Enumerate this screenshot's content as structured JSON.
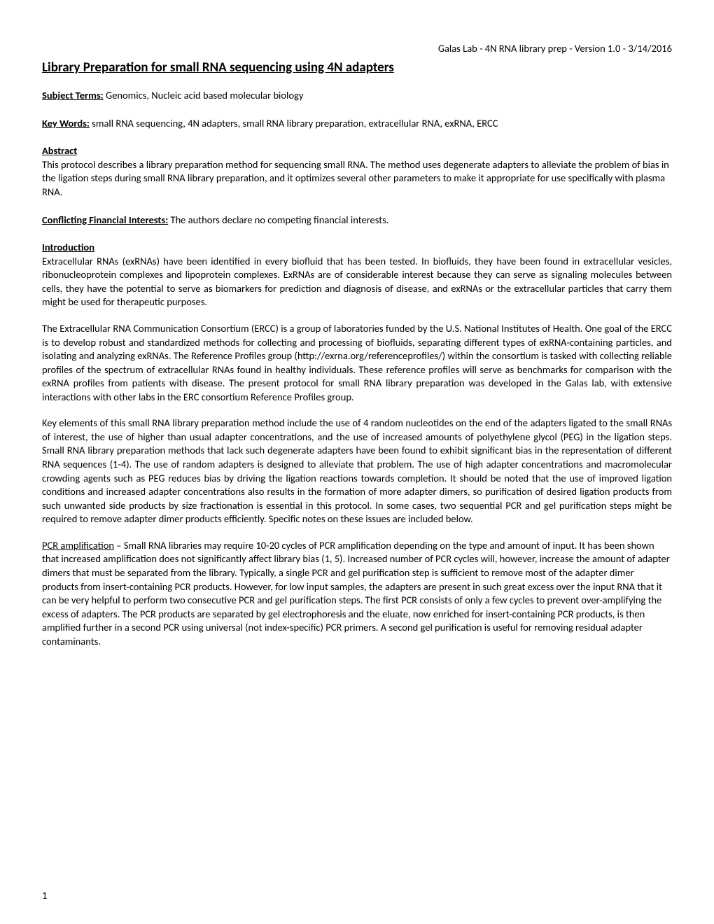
{
  "header": {
    "meta": "Galas Lab - 4N RNA library prep - Version 1.0 - 3/14/2016"
  },
  "title": "Library Preparation for small RNA sequencing using 4N adapters",
  "subject_terms": {
    "label": "Subject Terms:",
    "text": " Genomics, Nucleic acid based molecular biology"
  },
  "key_words": {
    "label": "Key Words:",
    "text": " small RNA sequencing, 4N adapters, small RNA library preparation, extracellular RNA, exRNA, ERCC"
  },
  "abstract": {
    "label": "Abstract",
    "text": "This protocol describes a library preparation method for sequencing small RNA. The method uses degenerate adapters to alleviate the problem of bias in the ligation steps during small RNA library preparation, and it optimizes several other parameters to make it appropriate for use specifically with plasma RNA."
  },
  "conflicting": {
    "label": "Conflicting Financial Interests:",
    "text": " The authors declare no competing financial interests."
  },
  "introduction": {
    "label": "Introduction",
    "p1": "Extracellular RNAs (exRNAs) have been identified in every biofluid that has been tested. In biofluids, they have been found in extracellular vesicles, ribonucleoprotein complexes and lipoprotein complexes. ExRNAs are of considerable interest because they can serve as signaling molecules between cells, they have the potential to serve as biomarkers for prediction and diagnosis of disease, and exRNAs or the extracellular particles that carry them might be used for therapeutic purposes.",
    "p2": "The Extracellular RNA Communication Consortium (ERCC) is a group of laboratories funded by the U.S. National Institutes of Health. One goal of the ERCC is to develop robust and standardized methods for collecting and processing of biofluids, separating different types of exRNA-containing particles, and isolating and analyzing exRNAs. The Reference Profiles group (http://exrna.org/referenceprofiles/) within the consortium is tasked with collecting reliable profiles of the spectrum of extracellular RNAs found in healthy individuals. These reference profiles will serve as benchmarks for comparison with the exRNA profiles from patients with disease. The present protocol for small RNA library preparation was developed in the Galas lab, with extensive interactions with other labs in the ERC consortium Reference Profiles group.",
    "p3": "Key elements of this small RNA library preparation method include the use of 4 random nucleotides on the end of the adapters ligated to the small RNAs of interest, the use of higher than usual adapter concentrations, and the use of increased amounts of polyethylene glycol (PEG) in the ligation steps. Small RNA library preparation methods that lack such degenerate adapters have been found to exhibit significant bias in the representation of different RNA sequences (1-4). The use of random adapters is designed to alleviate that problem. The use of high adapter concentrations and macromolecular crowding agents such as PEG reduces bias by driving the ligation reactions towards completion. It should be noted that the use of improved ligation conditions and increased adapter concentrations also results in the formation of more adapter dimers, so purification of desired ligation products from such unwanted side products by size fractionation is essential in this protocol. In some cases, two sequential PCR and gel purification steps might be required to remove adapter dimer products efficiently. Specific notes on these issues are included below."
  },
  "pcr": {
    "label": "PCR amplification",
    "text": " – Small RNA libraries may require 10-20 cycles of PCR amplification depending on the type and amount of input. It has been shown that increased amplification does not significantly affect library bias (1, 5). Increased number of PCR cycles will, however, increase the amount of adapter dimers that must be separated from the library. Typically, a single PCR and gel purification step is sufficient to remove most of the adapter dimer products from insert-containing PCR products. However, for low input samples, the adapters are present in such great excess over the input RNA that it can be very helpful to perform two consecutive PCR and gel purification steps. The first PCR consists of only a few cycles to prevent over-amplifying the excess of adapters. The PCR products are separated by gel electrophoresis and the eluate, now enriched for insert-containing PCR products, is then amplified further in a second PCR using universal (not index-specific) PCR primers. A second gel purification is useful for removing residual adapter contaminants."
  },
  "page_number": "1"
}
